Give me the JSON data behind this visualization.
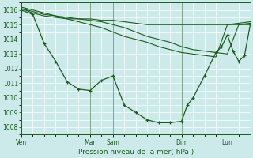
{
  "bg_color": "#cceaea",
  "grid_color": "#aadddd",
  "line_color": "#1a5c1a",
  "title": "Pression niveau de la mer( hPa )",
  "ylim": [
    1007.5,
    1016.5
  ],
  "yticks": [
    1008,
    1009,
    1010,
    1011,
    1012,
    1013,
    1014,
    1015,
    1016
  ],
  "xlim": [
    0,
    240
  ],
  "xtick_positions": [
    0,
    72,
    96,
    168,
    216
  ],
  "xtick_labels": [
    "Ven",
    "Mar",
    "Sam",
    "Dim",
    "Lun"
  ],
  "series": [
    {
      "x": [
        0,
        12,
        24,
        36,
        48,
        60,
        72,
        84,
        96,
        108,
        120,
        132,
        144,
        156,
        168,
        180,
        192,
        204,
        216,
        228,
        240
      ],
      "y": [
        1016.1,
        1015.8,
        1015.6,
        1015.5,
        1015.4,
        1015.4,
        1015.4,
        1015.3,
        1015.3,
        1015.2,
        1015.1,
        1015.0,
        1015.0,
        1015.0,
        1015.0,
        1015.0,
        1015.0,
        1015.0,
        1015.0,
        1015.0,
        1015.0
      ],
      "has_markers": false
    },
    {
      "x": [
        0,
        12,
        24,
        36,
        48,
        60,
        72,
        84,
        96,
        108,
        120,
        132,
        144,
        156,
        168,
        180,
        192,
        204,
        216,
        228,
        240
      ],
      "y": [
        1016.1,
        1015.9,
        1015.7,
        1015.6,
        1015.5,
        1015.4,
        1015.3,
        1015.2,
        1015.0,
        1014.8,
        1014.5,
        1014.2,
        1014.0,
        1013.8,
        1013.5,
        1013.3,
        1013.2,
        1013.1,
        1013.0,
        1015.0,
        1015.1
      ],
      "has_markers": false
    },
    {
      "x": [
        0,
        12,
        24,
        36,
        48,
        60,
        72,
        84,
        96,
        108,
        120,
        132,
        144,
        156,
        168,
        180,
        192,
        204,
        216,
        228,
        240
      ],
      "y": [
        1016.2,
        1016.0,
        1015.8,
        1015.6,
        1015.4,
        1015.2,
        1015.0,
        1014.8,
        1014.5,
        1014.2,
        1014.0,
        1013.8,
        1013.5,
        1013.3,
        1013.1,
        1013.0,
        1012.9,
        1012.8,
        1015.0,
        1015.1,
        1015.2
      ],
      "has_markers": false
    },
    {
      "x": [
        0,
        12,
        24,
        36,
        48,
        60,
        72,
        84,
        96,
        108,
        120,
        132,
        144,
        156,
        168,
        174,
        180,
        192,
        204,
        210,
        216,
        222,
        228,
        234,
        240
      ],
      "y": [
        1016.0,
        1015.7,
        1013.7,
        1012.5,
        1011.1,
        1010.6,
        1010.5,
        1011.2,
        1011.5,
        1009.5,
        1009.0,
        1008.5,
        1008.3,
        1008.3,
        1008.4,
        1009.5,
        1010.0,
        1011.5,
        1013.1,
        1013.5,
        1014.3,
        1013.2,
        1012.5,
        1012.9,
        1015.0
      ],
      "has_markers": true
    }
  ],
  "figsize": [
    3.2,
    2.0
  ],
  "dpi": 100
}
